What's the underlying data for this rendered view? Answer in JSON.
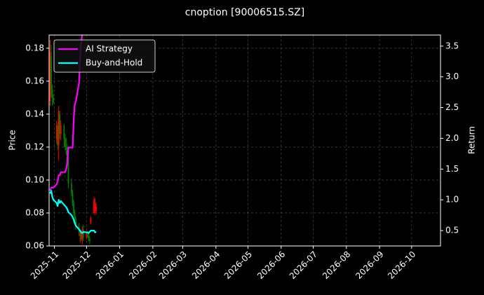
{
  "chart_data": {
    "type": "candlestick",
    "title": "cnoption [90006515.SZ]",
    "y_label": "Price",
    "y2_label": "Return",
    "x": [
      "2025-10-28",
      "2025-10-29",
      "2025-10-30",
      "2025-10-31",
      "2025-11-03",
      "2025-11-04",
      "2025-11-05",
      "2025-11-06",
      "2025-11-07",
      "2025-11-10",
      "2025-11-11",
      "2025-11-12",
      "2025-11-13",
      "2025-11-14",
      "2025-11-17",
      "2025-11-18",
      "2025-11-19",
      "2025-11-20",
      "2025-11-21",
      "2025-11-24",
      "2025-11-25",
      "2025-11-26",
      "2025-11-27",
      "2025-11-28",
      "2025-12-01",
      "2025-12-02",
      "2025-12-03",
      "2025-12-04",
      "2025-12-05",
      "2025-12-08",
      "2025-12-09",
      "2025-12-10"
    ],
    "open": [
      0.148,
      0.175,
      0.155,
      0.15,
      0.125,
      0.133,
      0.121,
      0.14,
      0.128,
      0.133,
      0.125,
      0.12,
      0.118,
      0.112,
      0.098,
      0.092,
      0.086,
      0.08,
      0.076,
      0.072,
      0.066,
      0.068,
      0.064,
      0.07,
      0.065,
      0.068,
      0.066,
      0.064,
      0.074,
      0.08,
      0.082,
      0.081
    ],
    "high": [
      0.185,
      0.182,
      0.158,
      0.152,
      0.136,
      0.135,
      0.145,
      0.142,
      0.136,
      0.134,
      0.128,
      0.126,
      0.122,
      0.114,
      0.101,
      0.094,
      0.088,
      0.082,
      0.078,
      0.074,
      0.07,
      0.069,
      0.072,
      0.073,
      0.07,
      0.069,
      0.068,
      0.066,
      0.078,
      0.09,
      0.089,
      0.086
    ],
    "low": [
      0.145,
      0.15,
      0.145,
      0.146,
      0.122,
      0.118,
      0.112,
      0.125,
      0.124,
      0.12,
      0.118,
      0.115,
      0.11,
      0.095,
      0.09,
      0.084,
      0.078,
      0.074,
      0.07,
      0.066,
      0.062,
      0.063,
      0.061,
      0.063,
      0.064,
      0.065,
      0.063,
      0.061,
      0.073,
      0.079,
      0.08,
      0.079
    ],
    "close": [
      0.178,
      0.155,
      0.15,
      0.147,
      0.133,
      0.121,
      0.142,
      0.128,
      0.133,
      0.125,
      0.12,
      0.118,
      0.112,
      0.098,
      0.092,
      0.086,
      0.08,
      0.076,
      0.072,
      0.068,
      0.068,
      0.064,
      0.07,
      0.065,
      0.068,
      0.066,
      0.064,
      0.063,
      0.077,
      0.088,
      0.086,
      0.084
    ],
    "up_color": "#ff0000",
    "down_color": "#008000",
    "series": [
      {
        "name": "AI Strategy",
        "color": "#ff00ff",
        "axis": "y2",
        "values": [
          1.15,
          1.2,
          1.2,
          1.2,
          1.25,
          1.3,
          1.4,
          1.4,
          1.45,
          1.45,
          1.45,
          1.5,
          1.6,
          1.85,
          1.85,
          1.85,
          2.3,
          2.55,
          2.6,
          2.9,
          3.3,
          3.55,
          3.7,
          null,
          null,
          null,
          null,
          null,
          null,
          null,
          null,
          null
        ]
      },
      {
        "name": "Buy-and-Hold",
        "color": "#00ffff",
        "axis": "y2",
        "values": [
          1.1,
          1.15,
          1.05,
          1.0,
          0.95,
          0.9,
          1.0,
          0.95,
          0.98,
          0.92,
          0.9,
          0.88,
          0.85,
          0.8,
          0.75,
          0.72,
          0.68,
          0.62,
          0.58,
          0.52,
          0.5,
          0.47,
          0.46,
          0.48,
          0.47,
          0.47,
          0.46,
          0.48,
          0.5,
          0.5,
          0.47,
          0.48
        ]
      }
    ],
    "xlim": [
      "2025-10-27",
      "2026-10-28"
    ],
    "xticks": [
      {
        "value": "2025-11-01",
        "label": "2025-11"
      },
      {
        "value": "2025-12-01",
        "label": "2025-12"
      },
      {
        "value": "2026-01-01",
        "label": "2026-01"
      },
      {
        "value": "2026-02-01",
        "label": "2026-02"
      },
      {
        "value": "2026-03-01",
        "label": "2026-03"
      },
      {
        "value": "2026-04-01",
        "label": "2026-04"
      },
      {
        "value": "2026-05-01",
        "label": "2026-05"
      },
      {
        "value": "2026-06-01",
        "label": "2026-06"
      },
      {
        "value": "2026-07-01",
        "label": "2026-07"
      },
      {
        "value": "2026-08-01",
        "label": "2026-08"
      },
      {
        "value": "2026-09-01",
        "label": "2026-09"
      },
      {
        "value": "2026-10-01",
        "label": "2026-10"
      }
    ],
    "ylim": [
      0.06,
      0.188
    ],
    "yticks": [
      0.06,
      0.08,
      {
        "value": 0.1,
        "label": "0.10"
      },
      0.12,
      0.14,
      0.16,
      0.18
    ],
    "y2lim": [
      0.25,
      3.68
    ],
    "y2ticks": [
      0.5,
      {
        "value": 1,
        "label": "1.0"
      },
      1.5,
      {
        "value": 2,
        "label": "2.0"
      },
      2.5,
      {
        "value": 3,
        "label": "3.0"
      },
      3.5
    ],
    "grid": true,
    "legend_position": "upper left"
  }
}
